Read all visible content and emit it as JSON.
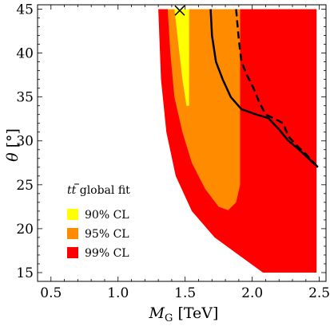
{
  "chart_data": {
    "type": "area",
    "xlabel": "M_G [TeV]",
    "xlabel_main": "M",
    "xlabel_sub": "G",
    "xlabel_unit": " [TeV]",
    "ylabel": "θ [°]",
    "ylabel_main": "θ",
    "ylabel_unit": " [°]",
    "xlim": [
      0.4,
      2.55
    ],
    "ylim": [
      14,
      45.5
    ],
    "xticks": [
      0.5,
      1.0,
      1.5,
      2.0,
      2.5
    ],
    "xtick_labels": [
      "0.5",
      "1.0",
      "1.5",
      "2.0",
      "2.5"
    ],
    "yticks": [
      15,
      20,
      25,
      30,
      35,
      40,
      45
    ],
    "ytick_labels": [
      "15",
      "20",
      "25",
      "30",
      "35",
      "40",
      "45"
    ],
    "grid": false,
    "legend": {
      "placement": "bottom-left",
      "title": "tt̄ global fit",
      "title_main": "t",
      "title_main2": "t",
      "title_rest": " global fit",
      "entries": [
        {
          "label": "90% CL",
          "color": "#ffff00"
        },
        {
          "label": "95% CL",
          "color": "#ff8c00"
        },
        {
          "label": "99% CL",
          "color": "#ff0000"
        }
      ]
    },
    "regions": [
      {
        "name": "99% CL",
        "color": "#ff0000",
        "points": [
          [
            1.3,
            45
          ],
          [
            2.48,
            45
          ],
          [
            2.48,
            15
          ],
          [
            2.08,
            15
          ],
          [
            1.9,
            17
          ],
          [
            1.72,
            19
          ],
          [
            1.55,
            22
          ],
          [
            1.43,
            26
          ],
          [
            1.36,
            31
          ],
          [
            1.32,
            37
          ]
        ]
      },
      {
        "name": "95% CL",
        "color": "#ff8c00",
        "points": [
          [
            1.37,
            45
          ],
          [
            1.91,
            45
          ],
          [
            1.91,
            25
          ],
          [
            1.88,
            23
          ],
          [
            1.82,
            22.1
          ],
          [
            1.75,
            22.5
          ],
          [
            1.65,
            24.5
          ],
          [
            1.55,
            27.5
          ],
          [
            1.48,
            31
          ],
          [
            1.42,
            35
          ],
          [
            1.39,
            40
          ]
        ]
      },
      {
        "name": "90% CL",
        "color": "#ffff00",
        "points": [
          [
            1.42,
            45
          ],
          [
            1.53,
            45
          ],
          [
            1.53,
            34
          ],
          [
            1.51,
            34
          ],
          [
            1.48,
            37
          ],
          [
            1.45,
            41
          ]
        ]
      }
    ],
    "curves": [
      {
        "style": "solid",
        "color": "#000000",
        "points": [
          [
            1.69,
            45
          ],
          [
            1.7,
            42
          ],
          [
            1.73,
            39
          ],
          [
            1.78,
            37
          ],
          [
            1.84,
            35
          ],
          [
            1.92,
            33.6
          ],
          [
            2.03,
            33
          ],
          [
            2.12,
            32.6
          ],
          [
            2.2,
            31.3
          ],
          [
            2.27,
            30
          ],
          [
            2.35,
            29
          ],
          [
            2.42,
            28
          ],
          [
            2.49,
            27
          ]
        ]
      },
      {
        "style": "dashed",
        "color": "#000000",
        "points": [
          [
            1.88,
            45
          ],
          [
            1.9,
            41.5
          ],
          [
            1.92,
            39
          ],
          [
            1.96,
            37.5
          ],
          [
            2.01,
            36
          ],
          [
            2.05,
            34.5
          ],
          [
            2.1,
            33
          ],
          [
            2.17,
            32.5
          ],
          [
            2.23,
            32
          ],
          [
            2.27,
            30.5
          ],
          [
            2.33,
            29.5
          ],
          [
            2.4,
            28.5
          ],
          [
            2.49,
            27
          ]
        ]
      }
    ],
    "markers": [
      {
        "symbol": "x",
        "x": 1.46,
        "y": 44.85,
        "color": "#000000"
      }
    ]
  }
}
